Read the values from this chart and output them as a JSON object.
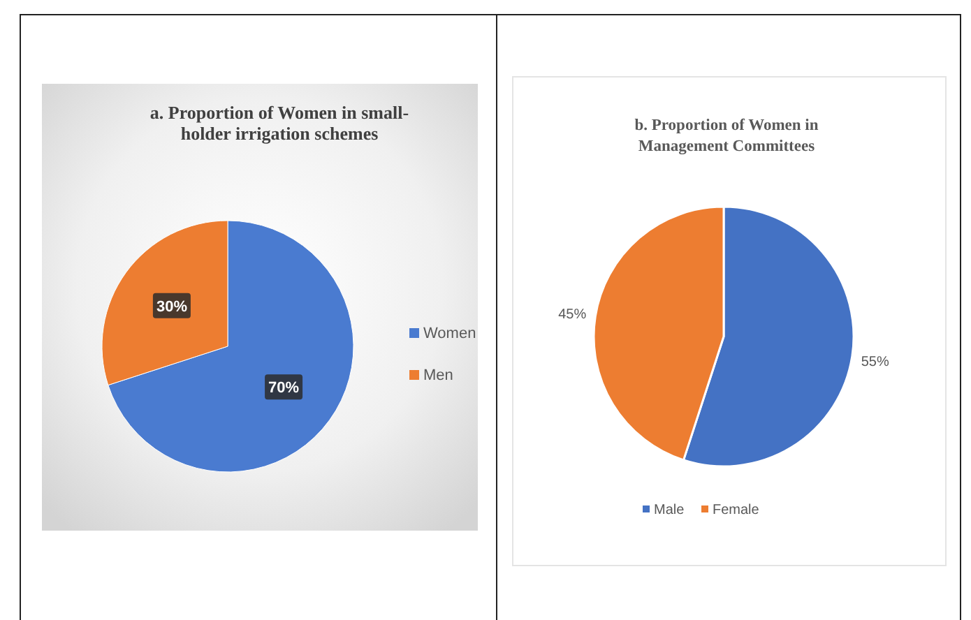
{
  "chart_data": [
    {
      "type": "pie",
      "title": "a. Proportion of Women in small-holder irrigation schemes",
      "categories": [
        "Women",
        "Men"
      ],
      "values": [
        70,
        30
      ],
      "colors": [
        "#4a7bd0",
        "#ed7d31"
      ],
      "value_labels": [
        "70%",
        "30%"
      ],
      "legend": "right"
    },
    {
      "type": "pie",
      "title": "b. Proportion of Women in Management Committees",
      "categories": [
        "Male",
        "Female"
      ],
      "values": [
        55,
        45
      ],
      "colors": [
        "#4472c4",
        "#ed7d31"
      ],
      "value_labels": [
        "55%",
        "45%"
      ],
      "legend": "bottom"
    }
  ]
}
